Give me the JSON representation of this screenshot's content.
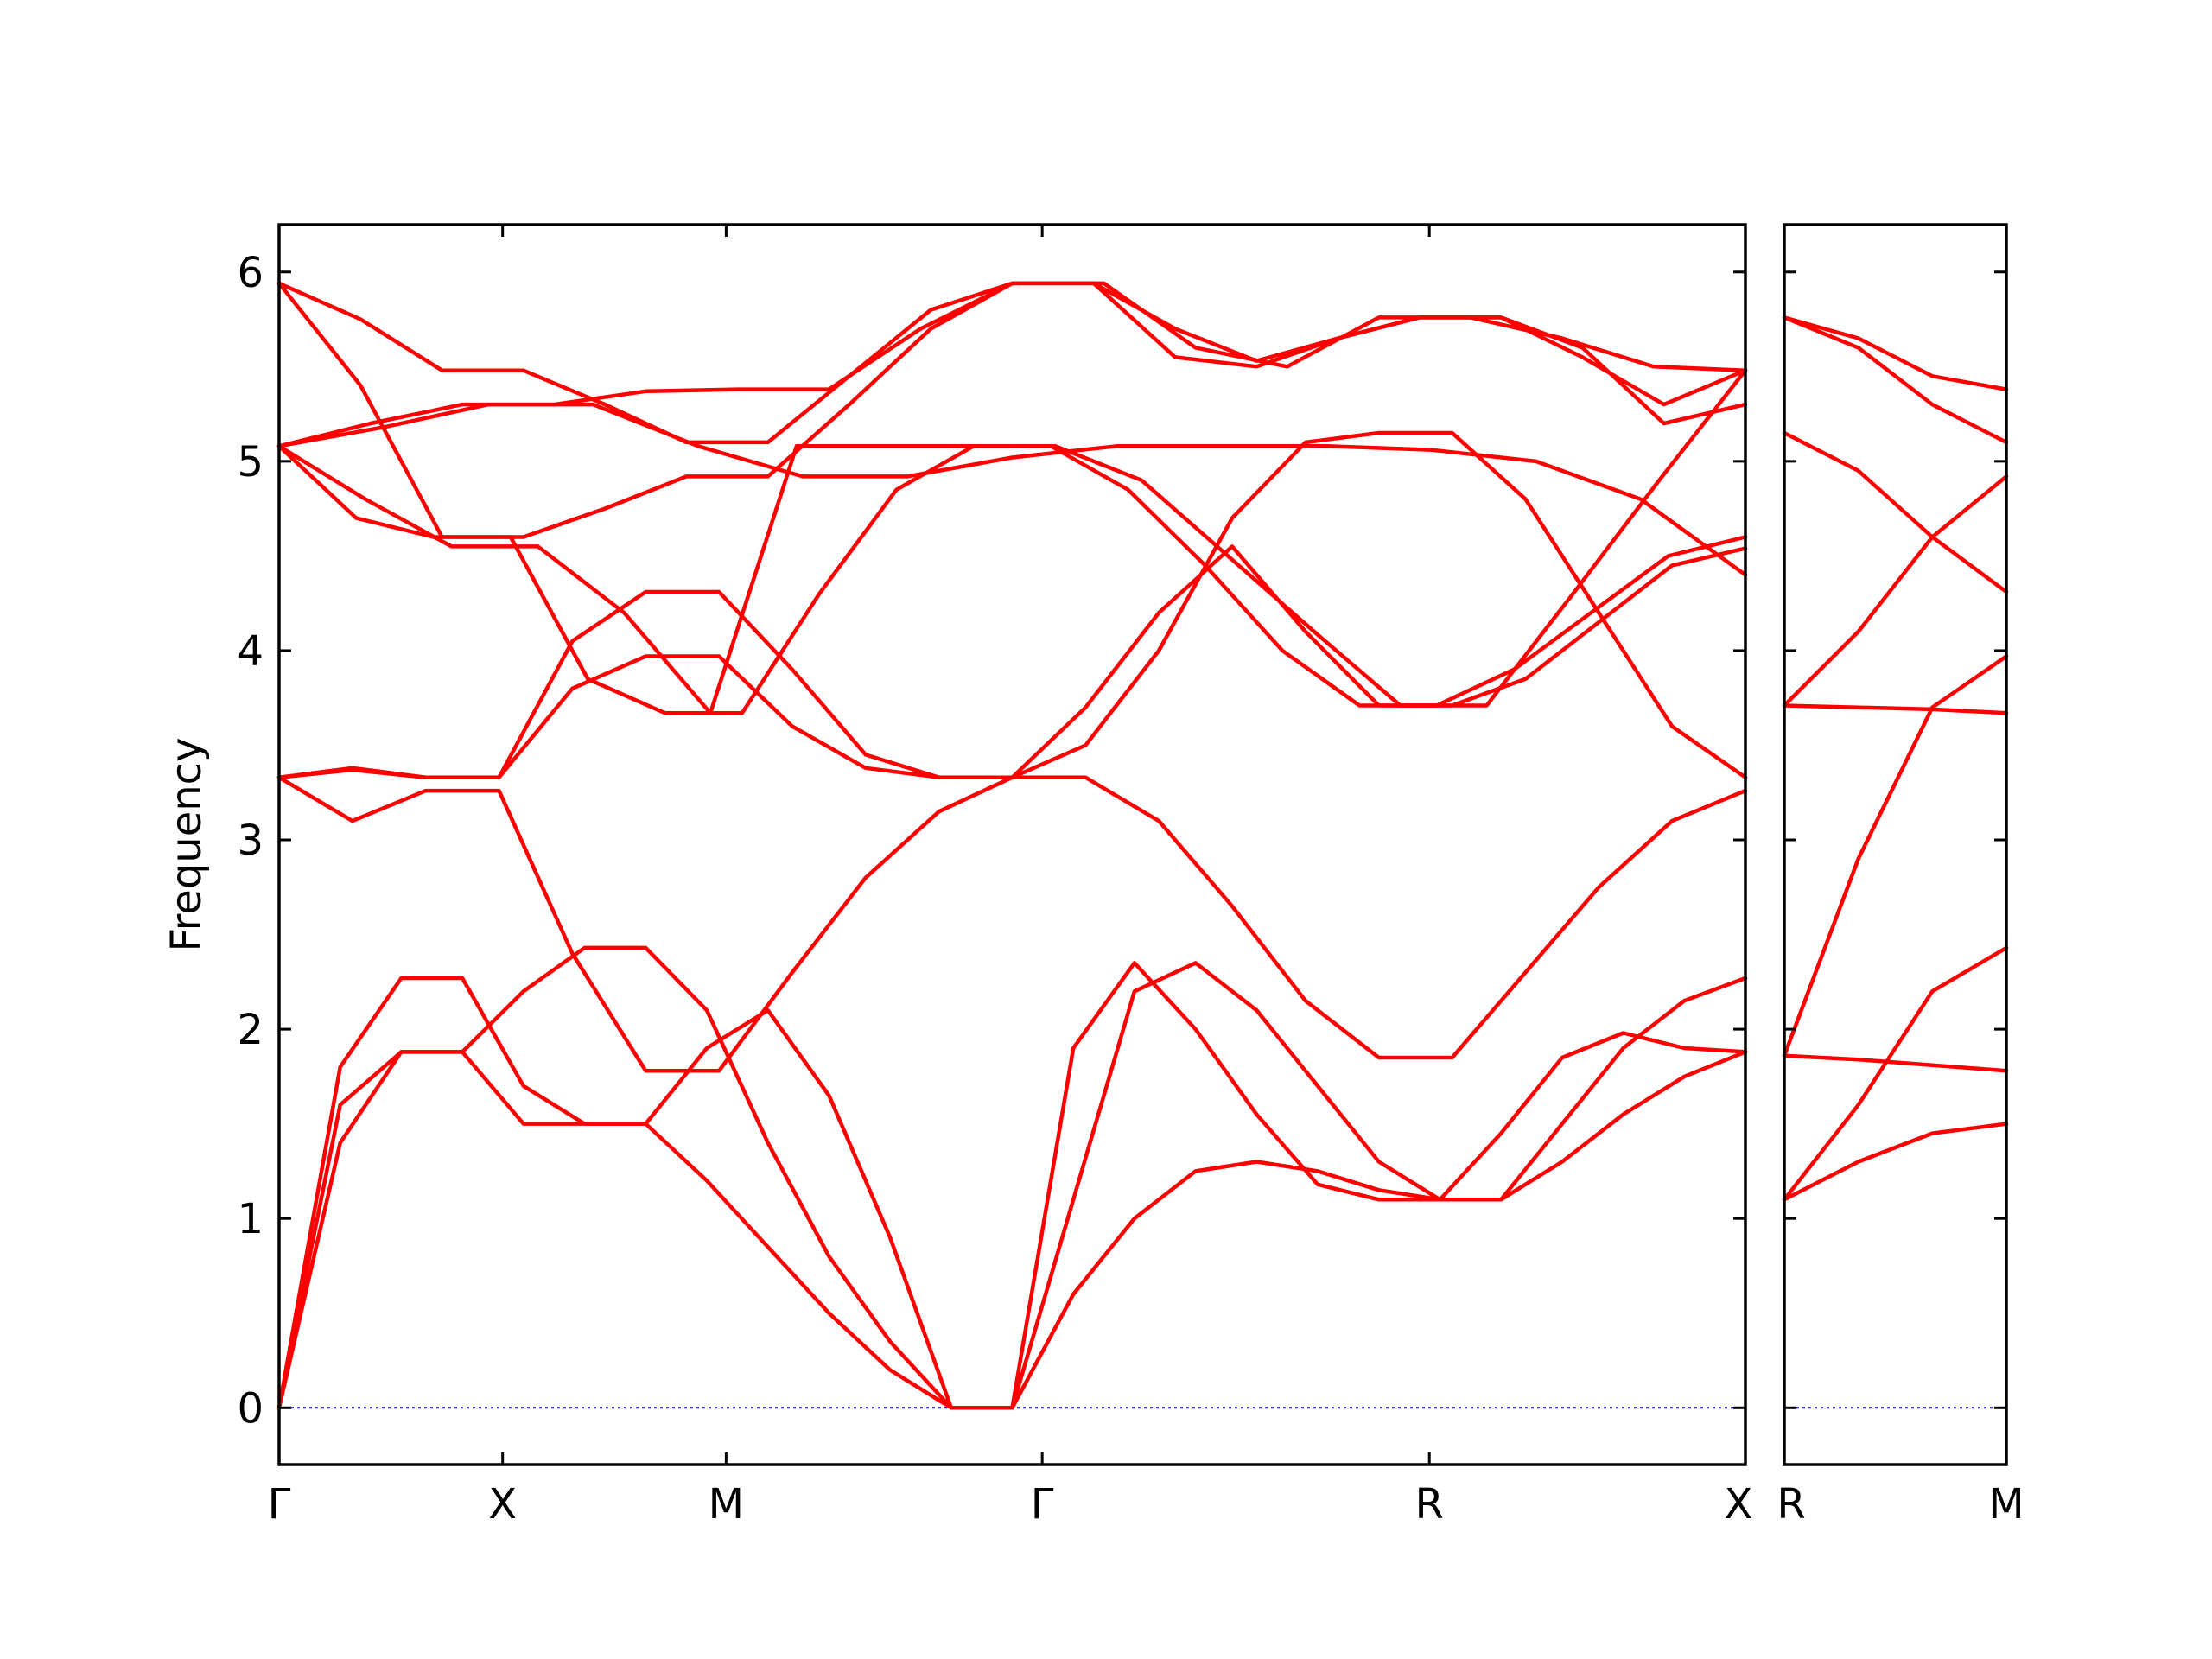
{
  "chart_data": {
    "type": "line",
    "ylabel": "Frequency",
    "ylim": [
      -0.3,
      6.25
    ],
    "yticks": [
      "0",
      "1",
      "2",
      "3",
      "4",
      "5",
      "6"
    ],
    "zero_line": true,
    "colors": {
      "bands": "#ff0000",
      "zero_line": "#0000aa",
      "frame": "#000000"
    },
    "panels": [
      {
        "path": [
          "Γ",
          "X",
          "M",
          "Γ",
          "R",
          "X"
        ],
        "segment_lengths": [
          1.0,
          1.0,
          1.414,
          1.732,
          1.414
        ],
        "bands": [
          [
            0,
            1.4,
            1.88,
            1.88,
            1.5,
            1.5,
            1.5,
            1.2,
            0.85,
            0.5,
            0.2,
            0,
            0,
            0.6,
            1.0,
            1.25,
            1.3,
            1.25,
            1.15,
            1.1,
            1.1,
            1.3,
            1.55,
            1.75,
            1.88
          ],
          [
            0,
            1.6,
            1.88,
            1.88,
            2.2,
            2.43,
            2.43,
            2.1,
            1.4,
            0.8,
            0.35,
            0,
            0,
            1.9,
            2.35,
            2.0,
            1.55,
            1.18,
            1.1,
            1.1,
            1.45,
            1.85,
            1.98,
            1.9,
            1.88
          ],
          [
            0,
            1.8,
            2.27,
            2.27,
            1.7,
            1.5,
            1.5,
            1.9,
            2.1,
            1.65,
            0.9,
            0,
            0,
            1.1,
            2.2,
            2.35,
            2.1,
            1.7,
            1.3,
            1.1,
            1.1,
            1.5,
            1.9,
            2.15,
            2.27
          ],
          [
            3.33,
            3.1,
            3.26,
            3.26,
            2.4,
            1.78,
            1.78,
            2.3,
            2.8,
            3.15,
            3.33,
            3.33,
            3.1,
            2.65,
            2.15,
            1.85,
            1.85,
            2.3,
            2.75,
            3.1,
            3.26
          ],
          [
            3.33,
            3.38,
            3.33,
            3.33,
            3.8,
            3.97,
            3.97,
            3.6,
            3.38,
            3.33,
            3.33,
            3.5,
            4.0,
            4.7,
            5.1,
            5.15,
            5.15,
            4.8,
            4.2,
            3.6,
            3.33
          ],
          [
            3.33,
            3.37,
            3.33,
            3.33,
            4.05,
            4.31,
            4.31,
            3.9,
            3.45,
            3.33,
            3.33,
            3.7,
            4.2,
            4.55,
            4.1,
            3.71,
            3.71,
            3.85,
            4.15,
            4.45,
            4.54
          ],
          [
            5.08,
            4.7,
            4.6,
            4.6,
            3.85,
            3.67,
            3.67,
            4.3,
            4.85,
            5.08,
            5.08,
            4.85,
            4.45,
            4.0,
            3.71,
            3.71,
            3.9,
            4.2,
            4.5,
            4.6
          ],
          [
            5.08,
            4.8,
            4.55,
            4.55,
            4.2,
            3.67,
            5.08,
            5.08,
            5.08,
            5.08,
            4.9,
            4.5,
            4.1,
            3.71,
            3.71,
            4.3,
            4.9,
            5.48
          ],
          [
            5.08,
            5.18,
            5.3,
            5.3,
            5.08,
            4.92,
            4.92,
            5.02,
            5.08,
            5.08,
            5.08,
            5.06,
            5.0,
            4.8,
            4.4
          ],
          [
            5.94,
            5.75,
            5.48,
            5.48,
            5.3,
            5.1,
            5.1,
            5.45,
            5.8,
            5.94,
            5.94,
            5.55,
            5.5,
            5.65,
            5.76,
            5.76,
            5.55,
            5.3,
            5.48
          ],
          [
            5.94,
            5.4,
            4.6,
            4.6,
            4.75,
            4.92,
            4.92,
            5.3,
            5.7,
            5.94,
            5.94,
            5.7,
            5.53,
            5.65,
            5.76,
            5.76,
            5.6,
            5.2,
            5.3
          ],
          [
            5.08,
            5.2,
            5.3,
            5.3,
            5.37,
            5.38,
            5.38,
            5.7,
            5.94,
            5.94,
            5.6,
            5.5,
            5.76,
            5.76,
            5.65,
            5.5,
            5.48
          ]
        ]
      },
      {
        "path": [
          "R",
          "M"
        ],
        "segment_lengths": [
          1.0
        ],
        "bands": [
          [
            1.1,
            1.3,
            1.45,
            1.5
          ],
          [
            1.1,
            1.6,
            2.2,
            2.43
          ],
          [
            1.86,
            1.84,
            1.81,
            1.78
          ],
          [
            1.86,
            2.9,
            3.7,
            3.97
          ],
          [
            3.71,
            3.7,
            3.69,
            3.67
          ],
          [
            3.71,
            4.1,
            4.6,
            4.92
          ],
          [
            5.15,
            4.95,
            4.6,
            4.31
          ],
          [
            5.76,
            5.6,
            5.3,
            5.1
          ],
          [
            5.76,
            5.65,
            5.45,
            5.38
          ]
        ]
      }
    ]
  }
}
